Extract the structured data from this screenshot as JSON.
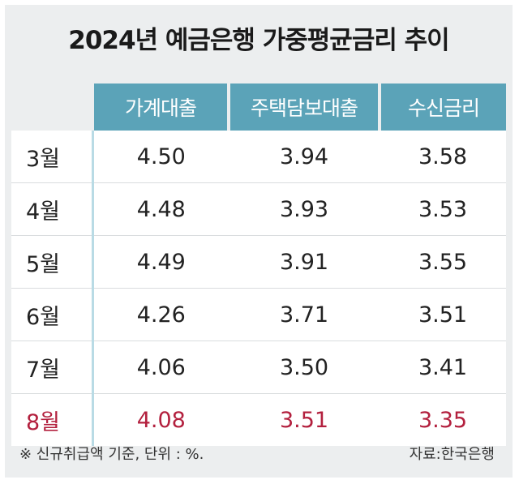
{
  "chart_data": {
    "type": "table",
    "title": "2024년 예금은행 가중평균금리 추이",
    "columns": [
      "가계대출",
      "주택담보대출",
      "수신금리"
    ],
    "rows": [
      {
        "month": "3월",
        "values": [
          "4.50",
          "3.94",
          "3.58"
        ]
      },
      {
        "month": "4월",
        "values": [
          "4.48",
          "3.93",
          "3.53"
        ]
      },
      {
        "month": "5월",
        "values": [
          "4.49",
          "3.91",
          "3.55"
        ]
      },
      {
        "month": "6월",
        "values": [
          "4.26",
          "3.71",
          "3.51"
        ]
      },
      {
        "month": "7월",
        "values": [
          "4.06",
          "3.50",
          "3.41"
        ]
      },
      {
        "month": "8월",
        "values": [
          "4.08",
          "3.51",
          "3.35"
        ]
      }
    ],
    "footnote": "※ 신규취급액 기준, 단위 : %.",
    "source": "자료:한국은행"
  },
  "colors": {
    "header_bg": "#5ba3b8",
    "header_text": "#ffffff",
    "highlight_text": "#b3203e",
    "background": "#eceeef"
  }
}
